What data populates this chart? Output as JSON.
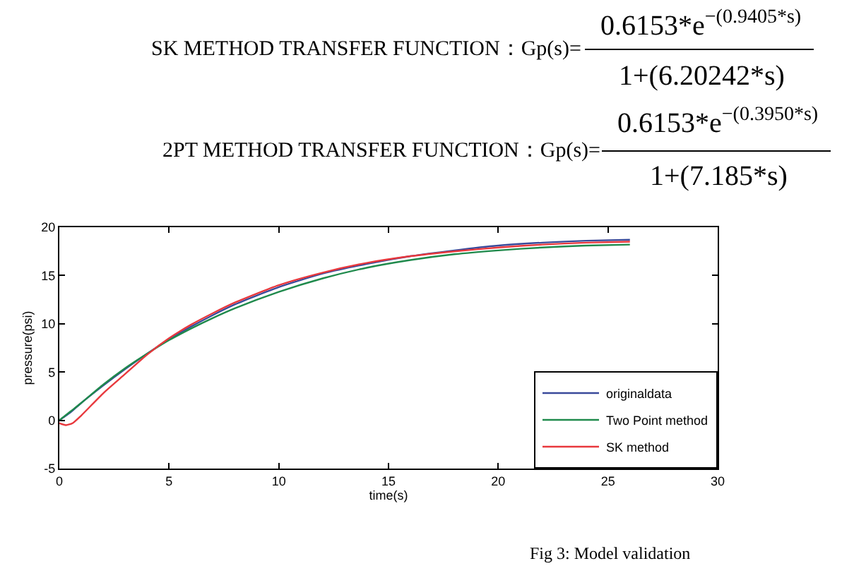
{
  "chart_data": {
    "type": "line",
    "xlabel": "time(s)",
    "ylabel": "pressure(psi)",
    "annotations": [
      "SK METHOD TRANSFER FUNCTION：Gp(s)=",
      "0.6153*e$^{−(0.9405*s)}$",
      "1+(6.20242*s)",
      "2PT METHOD TRANSFER FUNCTION：Gp(s)=",
      "0.6153*e$^{−(0.3950*s)}$",
      "1+(7.185*s)",
      "Fig 3: Model validation"
    ],
    "xlim": [
      0,
      30
    ],
    "xticks": [
      0,
      5,
      10,
      15,
      20,
      25,
      30
    ],
    "ylim": [
      -5,
      20
    ],
    "yticks": [
      -5,
      0,
      5,
      10,
      15,
      20
    ],
    "legend": "bottom right",
    "line_style": "solid",
    "series": [
      {
        "name": "originaldata",
        "color": "#3a4a9a",
        "x": [
          0,
          0.5,
          1,
          2,
          3,
          4,
          5,
          6,
          7,
          8,
          10,
          12,
          14,
          16,
          18,
          20,
          22,
          24,
          26
        ],
        "values": [
          0,
          0.8,
          1.8,
          3.6,
          5.3,
          6.9,
          8.4,
          9.7,
          10.9,
          12,
          13.8,
          15.2,
          16.2,
          17,
          17.6,
          18.1,
          18.4,
          18.6,
          18.7
        ]
      },
      {
        "name": "Two Point method",
        "color": "#1f8a4c",
        "x": [
          0,
          0.5,
          1,
          2,
          3,
          4,
          5,
          6,
          7,
          8,
          10,
          12,
          14,
          16,
          18,
          20,
          22,
          24,
          26
        ],
        "values": [
          0,
          0.9,
          1.8,
          3.7,
          5.4,
          6.9,
          8.3,
          9.5,
          10.6,
          11.6,
          13.3,
          14.7,
          15.8,
          16.6,
          17.2,
          17.6,
          17.9,
          18.1,
          18.2
        ]
      },
      {
        "name": "SK method",
        "color": "#e8383d",
        "x": [
          0,
          0.3,
          0.6,
          1,
          2,
          3,
          4,
          5,
          6,
          7,
          8,
          10,
          12,
          14,
          16,
          18,
          20,
          22,
          24,
          26
        ],
        "values": [
          -0.3,
          -0.5,
          -0.3,
          0.5,
          2.8,
          4.8,
          6.8,
          8.5,
          9.9,
          11.1,
          12.2,
          14,
          15.3,
          16.3,
          17,
          17.5,
          17.9,
          18.2,
          18.4,
          18.5
        ]
      }
    ]
  }
}
